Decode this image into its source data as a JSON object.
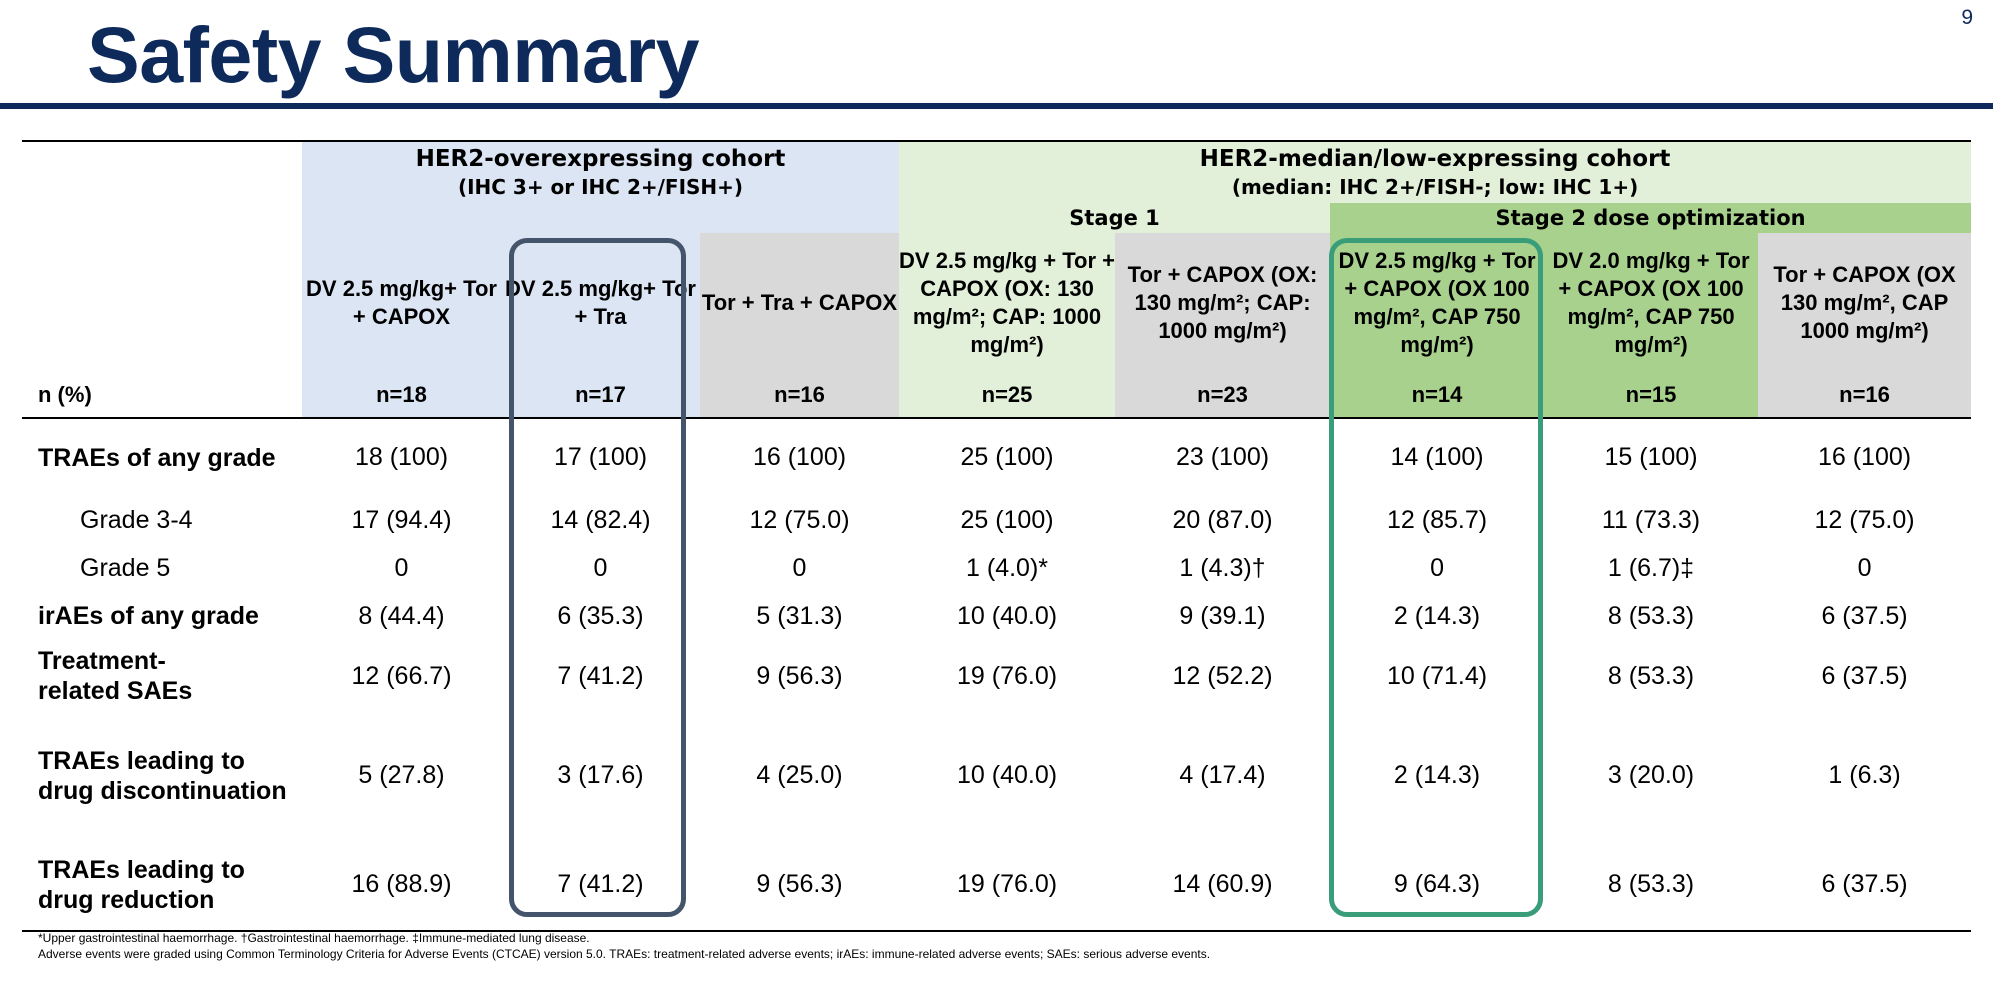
{
  "header": {
    "title": "Safety Summary",
    "page_number": "9"
  },
  "cohorts": {
    "her2_over": {
      "title": "HER2-overexpressing cohort",
      "subtitle": "(IHC 3+ or IHC 2+/FISH+)"
    },
    "her2_low": {
      "title": "HER2-median/low-expressing cohort",
      "subtitle": "(median: IHC 2+/FISH-; low: IHC 1+)"
    },
    "stage1": "Stage 1",
    "stage2": "Stage 2 dose optimization"
  },
  "table": {
    "n_label": "n (%)",
    "arms": [
      {
        "label": "DV 2.5 mg/kg+ Tor + CAPOX",
        "n": "n=18"
      },
      {
        "label": "DV 2.5 mg/kg+ Tor + Tra",
        "n": "n=17"
      },
      {
        "label": "Tor + Tra + CAPOX",
        "n": "n=16"
      },
      {
        "label": "DV 2.5 mg/kg + Tor + CAPOX (OX: 130 mg/m²; CAP: 1000 mg/m²)",
        "n": "n=25"
      },
      {
        "label": "Tor + CAPOX (OX: 130 mg/m²; CAP: 1000 mg/m²)",
        "n": "n=23"
      },
      {
        "label": "DV 2.5 mg/kg + Tor + CAPOX (OX 100 mg/m², CAP 750 mg/m²)",
        "n": "n=14"
      },
      {
        "label": "DV 2.0 mg/kg + Tor + CAPOX (OX 100 mg/m², CAP 750 mg/m²)",
        "n": "n=15"
      },
      {
        "label": "Tor + CAPOX (OX 130 mg/m², CAP 1000 mg/m²)",
        "n": "n=16"
      }
    ],
    "rows": [
      {
        "label": "TRAEs of any grade",
        "values": [
          "18 (100)",
          "17 (100)",
          "16 (100)",
          "25 (100)",
          "23 (100)",
          "14 (100)",
          "15 (100)",
          "16 (100)"
        ]
      },
      {
        "label": "Grade 3-4",
        "values": [
          "17 (94.4)",
          "14 (82.4)",
          "12 (75.0)",
          "25 (100)",
          "20 (87.0)",
          "12 (85.7)",
          "11 (73.3)",
          "12 (75.0)"
        ]
      },
      {
        "label": "Grade 5",
        "values": [
          "0",
          "0",
          "0",
          "1 (4.0)*",
          "1 (4.3)†",
          "0",
          "1 (6.7)‡",
          "0"
        ]
      },
      {
        "label": "irAEs of any grade",
        "values": [
          "8 (44.4)",
          "6 (35.3)",
          "5 (31.3)",
          "10 (40.0)",
          "9 (39.1)",
          "2 (14.3)",
          "8 (53.3)",
          "6 (37.5)"
        ]
      },
      {
        "label": "Treatment-related SAEs",
        "values": [
          "12 (66.7)",
          "7 (41.2)",
          "9 (56.3)",
          "19 (76.0)",
          "12 (52.2)",
          "10 (71.4)",
          "8 (53.3)",
          "6 (37.5)"
        ]
      },
      {
        "label": "TRAEs leading to drug discontinuation",
        "values": [
          "5 (27.8)",
          "3 (17.6)",
          "4 (25.0)",
          "10 (40.0)",
          "4 (17.4)",
          "2 (14.3)",
          "3 (20.0)",
          "1 (6.3)"
        ]
      },
      {
        "label": "TRAEs leading to drug reduction",
        "values": [
          "16 (88.9)",
          "7 (41.2)",
          "9 (56.3)",
          "19 (76.0)",
          "14 (60.9)",
          "9 (64.3)",
          "8 (53.3)",
          "6 (37.5)"
        ]
      }
    ]
  },
  "footnotes": {
    "line1": "*Upper gastrointestinal haemorrhage. †Gastrointestinal haemorrhage. ‡Immune-mediated lung disease.",
    "line2": "Adverse events were graded using Common Terminology Criteria for Adverse Events (CTCAE) version 5.0. TRAEs: treatment-related adverse events; irAEs: immune-related adverse events; SAEs: serious adverse events."
  },
  "colors": {
    "title": "#0d2a5b",
    "her2_over_bg": "#dce5f4",
    "her2_low_bg": "#e2f0da",
    "stage2_bg": "#a9d18e",
    "control_bg": "#d9d9d9",
    "highlight_blue": "#44546a",
    "highlight_green": "#3a9d7a"
  }
}
